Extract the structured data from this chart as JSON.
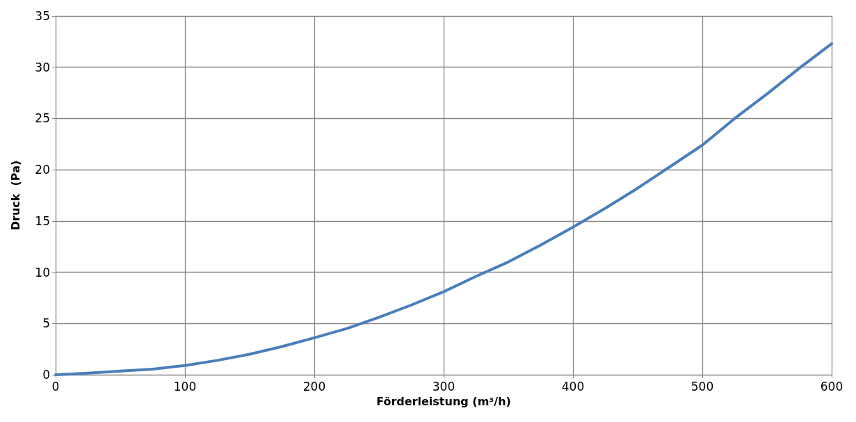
{
  "chart_data": {
    "type": "line",
    "xlabel": "Förderleistung (m³/h)",
    "ylabel": "Druck  (Pa)",
    "series": [
      {
        "color": "#4a7ebb",
        "x": [
          0,
          25,
          50,
          75,
          100,
          125,
          150,
          175,
          200,
          225,
          250,
          275,
          300,
          325,
          350,
          375,
          400,
          425,
          450,
          475,
          500,
          525,
          550,
          575,
          600
        ],
        "values": [
          0,
          0.15,
          0.35,
          0.55,
          0.9,
          1.4,
          2.0,
          2.75,
          3.6,
          4.5,
          5.6,
          6.8,
          8.1,
          9.6,
          11.0,
          12.65,
          14.4,
          16.25,
          18.2,
          20.3,
          22.4,
          25.0,
          27.4,
          29.9,
          32.3
        ]
      }
    ],
    "xlim": [
      0,
      600
    ],
    "xticks": [
      0,
      100,
      200,
      300,
      400,
      500,
      600
    ],
    "ylim": [
      0,
      35
    ],
    "yticks": [
      0,
      5,
      10,
      15,
      20,
      25,
      30,
      35
    ],
    "grid": true,
    "marker": "none",
    "line_style": "solid"
  }
}
